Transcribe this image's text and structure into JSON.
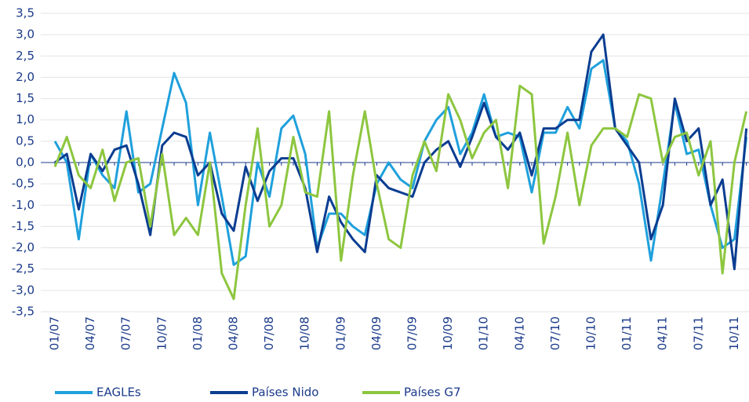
{
  "chart_data": {
    "type": "line",
    "categories": [
      "01/07",
      null,
      null,
      "04/07",
      null,
      null,
      "07/07",
      null,
      null,
      "10/07",
      null,
      null,
      "01/08",
      null,
      null,
      "04/08",
      null,
      null,
      "07/08",
      null,
      null,
      "10/08",
      null,
      null,
      "01/09",
      null,
      null,
      "04/09",
      null,
      null,
      "07/09",
      null,
      null,
      "10/09",
      null,
      null,
      "01/10",
      null,
      null,
      "04/10",
      null,
      null,
      "07/10",
      null,
      null,
      "10/10",
      null,
      null,
      "01/11",
      null,
      null,
      "04/11",
      null,
      null,
      "07/11",
      null,
      null,
      "10/11",
      null
    ],
    "series": [
      {
        "name": "EAGLEs",
        "color": "#1fa0dc",
        "values": [
          0.5,
          0.0,
          -1.8,
          0.2,
          -0.3,
          -0.6,
          1.2,
          -0.7,
          -0.5,
          0.8,
          2.1,
          1.4,
          -1.0,
          0.7,
          -0.8,
          -2.4,
          -2.2,
          0.0,
          -0.8,
          0.8,
          1.1,
          0.2,
          -2.0,
          -1.2,
          -1.2,
          -1.5,
          -1.7,
          -0.5,
          0.0,
          -0.4,
          -0.6,
          0.5,
          1.0,
          1.3,
          0.2,
          0.7,
          1.6,
          0.6,
          0.7,
          0.6,
          -0.7,
          0.7,
          0.7,
          1.3,
          0.8,
          2.2,
          2.4,
          0.8,
          0.5,
          -0.5,
          -2.3,
          -0.5,
          1.4,
          0.2,
          0.3,
          -1.0,
          -2.0,
          -1.8,
          0.6
        ]
      },
      {
        "name": "Países Nido",
        "color": "#0b3d91",
        "values": [
          0.0,
          0.2,
          -1.1,
          0.2,
          -0.2,
          0.3,
          0.4,
          -0.5,
          -1.7,
          0.4,
          0.7,
          0.6,
          -0.3,
          0.0,
          -1.2,
          -1.6,
          -0.1,
          -0.9,
          -0.2,
          0.1,
          0.1,
          -0.6,
          -2.1,
          -0.8,
          -1.4,
          -1.8,
          -2.1,
          -0.3,
          -0.6,
          -0.7,
          -0.8,
          0.0,
          0.3,
          0.5,
          -0.1,
          0.6,
          1.4,
          0.6,
          0.3,
          0.7,
          -0.3,
          0.8,
          0.8,
          1.0,
          1.0,
          2.6,
          3.0,
          0.8,
          0.4,
          0.0,
          -1.8,
          -1.0,
          1.5,
          0.5,
          0.8,
          -1.0,
          -0.4,
          -2.5,
          0.8
        ]
      },
      {
        "name": "Países G7",
        "color": "#8dc63f",
        "values": [
          -0.1,
          0.6,
          -0.3,
          -0.6,
          0.3,
          -0.9,
          0.0,
          0.1,
          -1.5,
          0.2,
          -1.7,
          -1.3,
          -1.7,
          0.0,
          -2.6,
          -3.2,
          -1.0,
          0.8,
          -1.5,
          -1.0,
          0.6,
          -0.7,
          -0.8,
          1.2,
          -2.3,
          -0.3,
          1.2,
          -0.5,
          -1.8,
          -2.0,
          -0.3,
          0.5,
          -0.2,
          1.6,
          1.0,
          0.1,
          0.7,
          1.0,
          -0.6,
          1.8,
          1.6,
          -1.9,
          -0.8,
          0.7,
          -1.0,
          0.4,
          0.8,
          0.8,
          0.6,
          1.6,
          1.5,
          0.0,
          0.6,
          0.7,
          -0.3,
          0.5,
          -2.6,
          0.0,
          1.2
        ]
      }
    ],
    "ylim": [
      -3.5,
      3.5
    ],
    "yticks": [
      {
        "value": -3.5,
        "label": "-3,5"
      },
      {
        "value": -3.0,
        "label": "-3,0"
      },
      {
        "value": -2.5,
        "label": "-2,5"
      },
      {
        "value": -2.0,
        "label": "-2,0"
      },
      {
        "value": -1.5,
        "label": "-1,5"
      },
      {
        "value": -1.0,
        "label": "-1,0"
      },
      {
        "value": -0.5,
        "label": "-0,5"
      },
      {
        "value": 0,
        "label": "0,0"
      },
      {
        "value": 0.5,
        "label": "0,5"
      },
      {
        "value": 1.0,
        "label": "1,0"
      },
      {
        "value": 1.5,
        "label": "1,5"
      },
      {
        "value": 2.0,
        "label": "2,0"
      },
      {
        "value": 2.5,
        "label": "2,5"
      },
      {
        "value": 3.0,
        "label": "3,0"
      },
      {
        "value": 3.5,
        "label": "3,5"
      }
    ],
    "grid": true,
    "legend": "bottom"
  }
}
